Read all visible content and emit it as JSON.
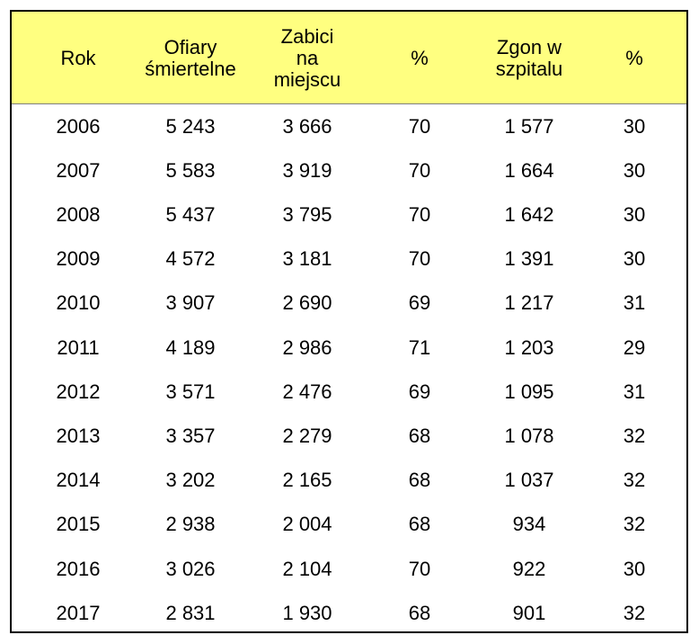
{
  "table": {
    "headers": [
      "Rok",
      "Ofiary\nśmiertelne",
      "Zabici\nna\nmiejscu",
      "%",
      "Zgon w\nszpitalu",
      "%"
    ],
    "rows": [
      [
        "2006",
        "5 243",
        "3 666",
        "70",
        "1 577",
        "30"
      ],
      [
        "2007",
        "5 583",
        "3 919",
        "70",
        "1 664",
        "30"
      ],
      [
        "2008",
        "5 437",
        "3 795",
        "70",
        "1 642",
        "30"
      ],
      [
        "2009",
        "4 572",
        "3 181",
        "70",
        "1 391",
        "30"
      ],
      [
        "2010",
        "3 907",
        "2 690",
        "69",
        "1 217",
        "31"
      ],
      [
        "2011",
        "4 189",
        "2 986",
        "71",
        "1 203",
        "29"
      ],
      [
        "2012",
        "3 571",
        "2 476",
        "69",
        "1 095",
        "31"
      ],
      [
        "2013",
        "3 357",
        "2 279",
        "68",
        "1 078",
        "32"
      ],
      [
        "2014",
        "3 202",
        "2 165",
        "68",
        "1 037",
        "32"
      ],
      [
        "2015",
        "2 938",
        "2 004",
        "68",
        "934",
        "32"
      ],
      [
        "2016",
        "3 026",
        "2 104",
        "70",
        "922",
        "30"
      ],
      [
        "2017",
        "2 831",
        "1 930",
        "68",
        "901",
        "32"
      ]
    ]
  },
  "colors": {
    "header_background": "#ffff80",
    "border": "#000000",
    "text": "#000000"
  }
}
